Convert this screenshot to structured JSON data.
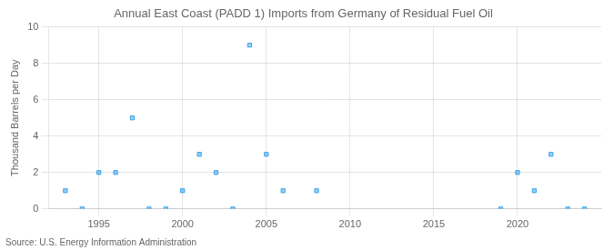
{
  "chart_data": {
    "type": "scatter",
    "title": "Annual East Coast (PADD 1) Imports from Germany of Residual Fuel Oil",
    "ylabel": "Thousand Barrels per Day",
    "annotations": [
      "Source: U.S. Energy Information Administration"
    ],
    "x": [
      1993,
      1994,
      1995,
      1996,
      1997,
      1998,
      1999,
      2000,
      2001,
      2002,
      2003,
      2004,
      2005,
      2006,
      2008,
      2019,
      2020,
      2021,
      2022,
      2023,
      2024
    ],
    "values": [
      1,
      0,
      2,
      2,
      5,
      0,
      0,
      1,
      3,
      2,
      0,
      9,
      3,
      1,
      1,
      0,
      2,
      1,
      3,
      0,
      0
    ],
    "marker": "square",
    "xlim": [
      1992,
      2025
    ],
    "xticks": [
      1995,
      2000,
      2005,
      2010,
      2015,
      2020
    ],
    "ylim": [
      0,
      10
    ],
    "yticks": [
      0,
      2,
      4,
      6,
      8,
      10
    ],
    "grid": true
  }
}
